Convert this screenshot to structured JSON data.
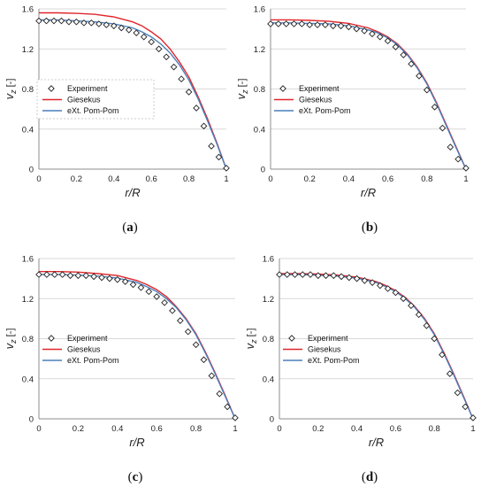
{
  "colors": {
    "giesekus": "#e0262b",
    "pompom": "#4a7ebb",
    "grid": "#d9d9d9",
    "axis": "#8c8c8c",
    "marker": "#222222"
  },
  "legend_labels": [
    "Experiment",
    "Giesekus",
    "eXt. Pom-Pom"
  ],
  "chart_data": [
    {
      "type": "line",
      "panel_label": "a",
      "ylabel_main": "v",
      "ylabel_sub": "z",
      "ylabel_unit": "[-]",
      "xlabel": "r/R",
      "xlim": [
        0,
        1
      ],
      "ylim": [
        0,
        1.6
      ],
      "xticks": [
        "0",
        "0.2",
        "0.4",
        "0.6",
        "0.8",
        "1"
      ],
      "yticks": [
        "0",
        "0.4",
        "0.8",
        "1.2",
        "1.6"
      ],
      "grid": "horizontal",
      "legend_position": "middle-left",
      "legend_boxed": true,
      "series": [
        {
          "name": "Experiment",
          "marker": "diamond",
          "x": [
            0,
            0.04,
            0.08,
            0.12,
            0.16,
            0.2,
            0.24,
            0.28,
            0.32,
            0.36,
            0.4,
            0.44,
            0.48,
            0.52,
            0.56,
            0.6,
            0.64,
            0.68,
            0.72,
            0.76,
            0.8,
            0.84,
            0.88,
            0.92,
            0.96,
            1.0
          ],
          "y": [
            1.48,
            1.48,
            1.48,
            1.48,
            1.47,
            1.47,
            1.46,
            1.46,
            1.45,
            1.44,
            1.43,
            1.41,
            1.39,
            1.36,
            1.32,
            1.27,
            1.2,
            1.12,
            1.02,
            0.9,
            0.77,
            0.61,
            0.43,
            0.23,
            0.12,
            0.01
          ]
        },
        {
          "name": "Giesekus",
          "x": [
            0,
            0.1,
            0.2,
            0.3,
            0.4,
            0.5,
            0.55,
            0.6,
            0.65,
            0.7,
            0.75,
            0.8,
            0.85,
            0.9,
            0.95,
            1.0
          ],
          "y": [
            1.56,
            1.56,
            1.555,
            1.545,
            1.52,
            1.47,
            1.43,
            1.37,
            1.3,
            1.2,
            1.07,
            0.92,
            0.72,
            0.5,
            0.26,
            0.0
          ]
        },
        {
          "name": "eXt. Pom-Pom",
          "x": [
            0,
            0.1,
            0.2,
            0.3,
            0.4,
            0.5,
            0.55,
            0.6,
            0.65,
            0.7,
            0.75,
            0.8,
            0.85,
            0.9,
            0.95,
            1.0
          ],
          "y": [
            1.49,
            1.49,
            1.48,
            1.47,
            1.45,
            1.41,
            1.37,
            1.32,
            1.25,
            1.16,
            1.04,
            0.89,
            0.7,
            0.48,
            0.25,
            0.0
          ]
        }
      ]
    },
    {
      "type": "line",
      "panel_label": "b",
      "ylabel_main": "v",
      "ylabel_sub": "z",
      "ylabel_unit": "[-]",
      "xlabel": "r/R",
      "xlim": [
        0,
        1
      ],
      "ylim": [
        0,
        1.6
      ],
      "xticks": [
        "0",
        "0.2",
        "0.4",
        "0.6",
        "0.8",
        "1"
      ],
      "yticks": [
        "0",
        "0.4",
        "0.8",
        "1.2",
        "1.6"
      ],
      "grid": "horizontal",
      "legend_position": "middle-left",
      "legend_boxed": false,
      "series": [
        {
          "name": "Experiment",
          "marker": "diamond",
          "x": [
            0,
            0.04,
            0.08,
            0.12,
            0.16,
            0.2,
            0.24,
            0.28,
            0.32,
            0.36,
            0.4,
            0.44,
            0.48,
            0.52,
            0.56,
            0.6,
            0.64,
            0.68,
            0.72,
            0.76,
            0.8,
            0.84,
            0.88,
            0.92,
            0.96,
            1.0
          ],
          "y": [
            1.45,
            1.45,
            1.45,
            1.45,
            1.45,
            1.44,
            1.44,
            1.44,
            1.43,
            1.43,
            1.42,
            1.4,
            1.38,
            1.35,
            1.32,
            1.28,
            1.22,
            1.14,
            1.05,
            0.93,
            0.79,
            0.62,
            0.41,
            0.22,
            0.1,
            0.01
          ]
        },
        {
          "name": "Giesekus",
          "x": [
            0,
            0.1,
            0.2,
            0.3,
            0.4,
            0.5,
            0.55,
            0.6,
            0.65,
            0.7,
            0.75,
            0.8,
            0.85,
            0.9,
            0.95,
            1.0
          ],
          "y": [
            1.49,
            1.49,
            1.485,
            1.475,
            1.455,
            1.41,
            1.37,
            1.32,
            1.25,
            1.15,
            1.02,
            0.86,
            0.66,
            0.44,
            0.22,
            0.0
          ]
        },
        {
          "name": "eXt. Pom-Pom",
          "x": [
            0,
            0.1,
            0.2,
            0.3,
            0.4,
            0.5,
            0.55,
            0.6,
            0.65,
            0.7,
            0.75,
            0.8,
            0.85,
            0.9,
            0.95,
            1.0
          ],
          "y": [
            1.46,
            1.46,
            1.455,
            1.45,
            1.43,
            1.39,
            1.36,
            1.31,
            1.24,
            1.14,
            1.01,
            0.85,
            0.65,
            0.43,
            0.21,
            0.0
          ]
        }
      ]
    },
    {
      "type": "line",
      "panel_label": "c",
      "ylabel_main": "v",
      "ylabel_sub": "z",
      "ylabel_unit": "[-]",
      "xlabel": "r/R",
      "xlim": [
        0,
        1
      ],
      "ylim": [
        0,
        1.6
      ],
      "xticks": [
        "0",
        "0.2",
        "0.4",
        "0.6",
        "0.8",
        "1"
      ],
      "yticks": [
        "0",
        "0.4",
        "0.8",
        "1.2",
        "1.6"
      ],
      "grid": "horizontal",
      "legend_position": "middle-left",
      "legend_boxed": false,
      "series": [
        {
          "name": "Experiment",
          "marker": "diamond",
          "x": [
            0,
            0.04,
            0.08,
            0.12,
            0.16,
            0.2,
            0.24,
            0.28,
            0.32,
            0.36,
            0.4,
            0.44,
            0.48,
            0.52,
            0.56,
            0.6,
            0.64,
            0.68,
            0.72,
            0.76,
            0.8,
            0.84,
            0.88,
            0.92,
            0.96,
            1.0
          ],
          "y": [
            1.44,
            1.44,
            1.44,
            1.44,
            1.43,
            1.43,
            1.43,
            1.42,
            1.41,
            1.4,
            1.39,
            1.37,
            1.34,
            1.31,
            1.27,
            1.22,
            1.16,
            1.08,
            0.98,
            0.87,
            0.74,
            0.59,
            0.43,
            0.25,
            0.12,
            0.01
          ]
        },
        {
          "name": "Giesekus",
          "x": [
            0,
            0.1,
            0.2,
            0.3,
            0.4,
            0.5,
            0.55,
            0.6,
            0.65,
            0.7,
            0.75,
            0.8,
            0.85,
            0.9,
            0.95,
            1.0
          ],
          "y": [
            1.47,
            1.47,
            1.465,
            1.45,
            1.43,
            1.38,
            1.34,
            1.29,
            1.22,
            1.12,
            1.0,
            0.85,
            0.66,
            0.45,
            0.23,
            0.0
          ]
        },
        {
          "name": "eXt. Pom-Pom",
          "x": [
            0,
            0.1,
            0.2,
            0.3,
            0.4,
            0.5,
            0.55,
            0.6,
            0.65,
            0.7,
            0.75,
            0.8,
            0.85,
            0.9,
            0.95,
            1.0
          ],
          "y": [
            1.44,
            1.44,
            1.435,
            1.425,
            1.405,
            1.36,
            1.32,
            1.27,
            1.2,
            1.11,
            0.99,
            0.84,
            0.65,
            0.44,
            0.22,
            0.0
          ]
        }
      ]
    },
    {
      "type": "line",
      "panel_label": "d",
      "ylabel_main": "v",
      "ylabel_sub": "z",
      "ylabel_unit": "[-]",
      "xlabel": "r/R",
      "xlim": [
        0,
        1
      ],
      "ylim": [
        0,
        1.6
      ],
      "xticks": [
        "0",
        "0.2",
        "0.4",
        "0.6",
        "0.8",
        "1"
      ],
      "yticks": [
        "0",
        "0.4",
        "0.8",
        "1.2",
        "1.6"
      ],
      "grid": "horizontal",
      "legend_position": "middle-left",
      "legend_boxed": false,
      "series": [
        {
          "name": "Experiment",
          "marker": "diamond",
          "x": [
            0,
            0.04,
            0.08,
            0.12,
            0.16,
            0.2,
            0.24,
            0.28,
            0.32,
            0.36,
            0.4,
            0.44,
            0.48,
            0.52,
            0.56,
            0.6,
            0.64,
            0.68,
            0.72,
            0.76,
            0.8,
            0.84,
            0.88,
            0.92,
            0.96,
            1.0
          ],
          "y": [
            1.44,
            1.44,
            1.44,
            1.44,
            1.44,
            1.43,
            1.43,
            1.43,
            1.42,
            1.41,
            1.4,
            1.38,
            1.36,
            1.33,
            1.3,
            1.26,
            1.2,
            1.13,
            1.04,
            0.93,
            0.8,
            0.64,
            0.45,
            0.26,
            0.12,
            0.01
          ]
        },
        {
          "name": "Giesekus",
          "x": [
            0,
            0.1,
            0.2,
            0.3,
            0.4,
            0.5,
            0.55,
            0.6,
            0.65,
            0.7,
            0.75,
            0.8,
            0.85,
            0.9,
            0.95,
            1.0
          ],
          "y": [
            1.45,
            1.45,
            1.445,
            1.435,
            1.415,
            1.37,
            1.33,
            1.28,
            1.21,
            1.12,
            1.0,
            0.85,
            0.66,
            0.45,
            0.23,
            0.0
          ]
        },
        {
          "name": "eXt. Pom-Pom",
          "x": [
            0,
            0.1,
            0.2,
            0.3,
            0.4,
            0.5,
            0.55,
            0.6,
            0.65,
            0.7,
            0.75,
            0.8,
            0.85,
            0.9,
            0.95,
            1.0
          ],
          "y": [
            1.44,
            1.44,
            1.435,
            1.425,
            1.405,
            1.36,
            1.32,
            1.27,
            1.2,
            1.11,
            0.99,
            0.84,
            0.65,
            0.44,
            0.22,
            0.0
          ]
        }
      ]
    }
  ]
}
